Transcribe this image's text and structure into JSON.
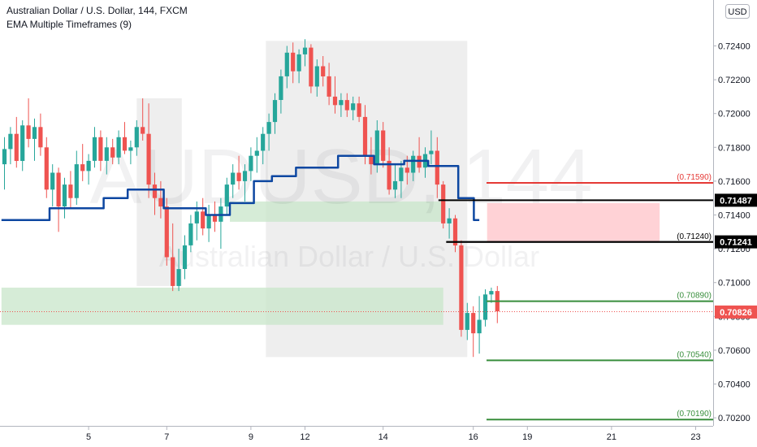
{
  "header": {
    "title": "Australian Dollar / U.S. Dollar, 144, FXCM",
    "indicator": "EMA Multiple Timeframes (9)"
  },
  "watermark": {
    "symbol": "AUDUSD, 144",
    "name": "Australian Dollar / U.S. Dollar"
  },
  "currency_button": "USD",
  "colors": {
    "up": "#26a69a",
    "down": "#ef5350",
    "ema": "#0d47a1",
    "resistance": "#e53935",
    "support": "#388e3c",
    "black_level": "#000000",
    "price_tag": "#ef5350",
    "zone_green": "#c8e6c9",
    "zone_red": "#ffcdd2",
    "zone_gray": "#e0e0e0"
  },
  "chart_data": {
    "type": "candlestick",
    "price_axis": {
      "range": [
        0.7011,
        0.7251
      ],
      "ticks": [
        "0.72400",
        "0.72200",
        "0.72000",
        "0.71800",
        "0.71600",
        "0.71400",
        "0.71200",
        "0.71000",
        "0.70800",
        "0.70600",
        "0.70400",
        "0.70200"
      ]
    },
    "time_axis": {
      "ticks": [
        {
          "label": "5",
          "bar": 14
        },
        {
          "label": "7",
          "bar": 27
        },
        {
          "label": "9",
          "bar": 41
        },
        {
          "label": "12",
          "bar": 50
        },
        {
          "label": "14",
          "bar": 63
        },
        {
          "label": "16",
          "bar": 78
        },
        {
          "label": "19",
          "bar": 87
        },
        {
          "label": "21",
          "bar": 101
        },
        {
          "label": "23",
          "bar": 115
        }
      ],
      "total_slots": 119
    },
    "candles": [
      [
        0.717,
        0.7186,
        0.7155,
        0.7179
      ],
      [
        0.7179,
        0.7192,
        0.717,
        0.7188
      ],
      [
        0.7188,
        0.7198,
        0.7168,
        0.7172
      ],
      [
        0.7172,
        0.7196,
        0.7166,
        0.7193
      ],
      [
        0.7193,
        0.7209,
        0.718,
        0.7185
      ],
      [
        0.7185,
        0.7197,
        0.7172,
        0.7192
      ],
      [
        0.7192,
        0.72,
        0.7175,
        0.718
      ],
      [
        0.718,
        0.7186,
        0.715,
        0.7155
      ],
      [
        0.7155,
        0.717,
        0.7145,
        0.7165
      ],
      [
        0.7165,
        0.7168,
        0.713,
        0.7145
      ],
      [
        0.7145,
        0.7162,
        0.7138,
        0.7158
      ],
      [
        0.7158,
        0.7166,
        0.7144,
        0.715
      ],
      [
        0.715,
        0.7178,
        0.7146,
        0.717
      ],
      [
        0.717,
        0.7182,
        0.716,
        0.7166
      ],
      [
        0.7166,
        0.7176,
        0.7158,
        0.7172
      ],
      [
        0.7172,
        0.7192,
        0.7168,
        0.7186
      ],
      [
        0.7186,
        0.719,
        0.7166,
        0.7172
      ],
      [
        0.7172,
        0.7186,
        0.7164,
        0.718
      ],
      [
        0.718,
        0.7185,
        0.717,
        0.7174
      ],
      [
        0.7174,
        0.719,
        0.717,
        0.7186
      ],
      [
        0.7186,
        0.7195,
        0.7176,
        0.7178
      ],
      [
        0.7178,
        0.7184,
        0.717,
        0.718
      ],
      [
        0.718,
        0.7196,
        0.7175,
        0.7192
      ],
      [
        0.7192,
        0.7209,
        0.7184,
        0.7188
      ],
      [
        0.7188,
        0.7206,
        0.715,
        0.7158
      ],
      [
        0.7158,
        0.7165,
        0.714,
        0.715
      ],
      [
        0.715,
        0.716,
        0.7138,
        0.7145
      ],
      [
        0.7145,
        0.715,
        0.711,
        0.7115
      ],
      [
        0.7115,
        0.7135,
        0.7095,
        0.7098
      ],
      [
        0.7098,
        0.712,
        0.7095,
        0.7108
      ],
      [
        0.7108,
        0.7128,
        0.7102,
        0.7122
      ],
      [
        0.7122,
        0.714,
        0.7118,
        0.7135
      ],
      [
        0.7135,
        0.7148,
        0.7125,
        0.7142
      ],
      [
        0.7142,
        0.715,
        0.7128,
        0.7132
      ],
      [
        0.7132,
        0.7146,
        0.7124,
        0.714
      ],
      [
        0.714,
        0.7148,
        0.713,
        0.7136
      ],
      [
        0.7136,
        0.715,
        0.712,
        0.7145
      ],
      [
        0.7145,
        0.7162,
        0.714,
        0.7158
      ],
      [
        0.7158,
        0.717,
        0.715,
        0.7165
      ],
      [
        0.7165,
        0.7175,
        0.7155,
        0.716
      ],
      [
        0.716,
        0.717,
        0.7148,
        0.7166
      ],
      [
        0.7166,
        0.718,
        0.716,
        0.7175
      ],
      [
        0.7175,
        0.7186,
        0.7165,
        0.7178
      ],
      [
        0.7178,
        0.7192,
        0.717,
        0.7188
      ],
      [
        0.7188,
        0.72,
        0.7178,
        0.7195
      ],
      [
        0.7195,
        0.7212,
        0.7188,
        0.7208
      ],
      [
        0.7208,
        0.7226,
        0.72,
        0.7222
      ],
      [
        0.7222,
        0.724,
        0.7215,
        0.7236
      ],
      [
        0.7236,
        0.7242,
        0.7218,
        0.7225
      ],
      [
        0.7225,
        0.7238,
        0.7218,
        0.7235
      ],
      [
        0.7235,
        0.7244,
        0.7228,
        0.7239
      ],
      [
        0.7239,
        0.7241,
        0.7212,
        0.7216
      ],
      [
        0.7216,
        0.7232,
        0.721,
        0.7228
      ],
      [
        0.7228,
        0.7234,
        0.7216,
        0.7222
      ],
      [
        0.7222,
        0.723,
        0.7205,
        0.721
      ],
      [
        0.721,
        0.7222,
        0.72,
        0.7205
      ],
      [
        0.7205,
        0.7212,
        0.7198,
        0.7208
      ],
      [
        0.7208,
        0.7212,
        0.7198,
        0.7202
      ],
      [
        0.7202,
        0.721,
        0.7196,
        0.7206
      ],
      [
        0.7206,
        0.721,
        0.7195,
        0.7198
      ],
      [
        0.7198,
        0.7205,
        0.717,
        0.7175
      ],
      [
        0.7175,
        0.7186,
        0.7164,
        0.717
      ],
      [
        0.717,
        0.7196,
        0.7165,
        0.719
      ],
      [
        0.719,
        0.7195,
        0.7168,
        0.7172
      ],
      [
        0.7172,
        0.718,
        0.7152,
        0.7155
      ],
      [
        0.7155,
        0.717,
        0.715,
        0.716
      ],
      [
        0.716,
        0.7172,
        0.715,
        0.7168
      ],
      [
        0.7168,
        0.7175,
        0.7158,
        0.7165
      ],
      [
        0.7165,
        0.7178,
        0.716,
        0.7175
      ],
      [
        0.7175,
        0.7186,
        0.7165,
        0.7168
      ],
      [
        0.7168,
        0.718,
        0.7162,
        0.7176
      ],
      [
        0.7176,
        0.719,
        0.717,
        0.7178
      ],
      [
        0.7178,
        0.7186,
        0.715,
        0.7158
      ],
      [
        0.7158,
        0.716,
        0.7132,
        0.7135
      ],
      [
        0.7135,
        0.7144,
        0.7126,
        0.7138
      ],
      [
        0.7138,
        0.714,
        0.7118,
        0.7122
      ],
      [
        0.7122,
        0.7125,
        0.7068,
        0.7072
      ],
      [
        0.7072,
        0.7088,
        0.7066,
        0.7082
      ],
      [
        0.7082,
        0.7086,
        0.7056,
        0.707
      ],
      [
        0.707,
        0.7092,
        0.7058,
        0.7078
      ],
      [
        0.7078,
        0.7096,
        0.7074,
        0.7093
      ],
      [
        0.7093,
        0.7097,
        0.7088,
        0.7095
      ],
      [
        0.7095,
        0.7098,
        0.7076,
        0.7083
      ]
    ],
    "ema_steps": [
      {
        "from": 0,
        "to": 8,
        "value": 0.7137
      },
      {
        "from": 8,
        "to": 17,
        "value": 0.7144
      },
      {
        "from": 17,
        "to": 21,
        "value": 0.715
      },
      {
        "from": 21,
        "to": 27,
        "value": 0.7155
      },
      {
        "from": 27,
        "to": 34,
        "value": 0.7144
      },
      {
        "from": 34,
        "to": 38,
        "value": 0.714
      },
      {
        "from": 38,
        "to": 42,
        "value": 0.7147
      },
      {
        "from": 42,
        "to": 45,
        "value": 0.716
      },
      {
        "from": 45,
        "to": 49,
        "value": 0.7163
      },
      {
        "from": 49,
        "to": 56,
        "value": 0.7168
      },
      {
        "from": 56,
        "to": 62,
        "value": 0.7175
      },
      {
        "from": 62,
        "to": 67,
        "value": 0.717
      },
      {
        "from": 67,
        "to": 71,
        "value": 0.7172
      },
      {
        "from": 71,
        "to": 76,
        "value": 0.7169
      },
      {
        "from": 76,
        "to": 78.6,
        "value": 0.715
      },
      {
        "from": 78.6,
        "to": 79.5,
        "value": 0.7137
      }
    ],
    "zones": [
      {
        "kind": "gray",
        "from_bar": 22.5,
        "to_bar": 29,
        "top": 0.7209,
        "bottom": 0.7098
      },
      {
        "kind": "gray",
        "from_bar": 44,
        "to_bar": 76.5,
        "top": 0.7243,
        "bottom": 0.7056
      },
      {
        "kind": "green",
        "from_bar": 38,
        "to_bar": 72.5,
        "top": 0.7148,
        "bottom": 0.7136
      },
      {
        "kind": "green",
        "from_bar": 0,
        "to_bar": 72.5,
        "top": 0.7097,
        "bottom": 0.7075
      },
      {
        "kind": "red",
        "from_bar": 80.8,
        "to_bar": 108.5,
        "top": 0.7147,
        "bottom": 0.7124
      }
    ],
    "levels": [
      {
        "price": 0.7159,
        "label": "(0.71590)",
        "color": "resistance",
        "from_bar": 80.2
      },
      {
        "price": 0.7089,
        "label": "(0.70890)",
        "color": "support",
        "from_bar": 80.2
      },
      {
        "price": 0.7054,
        "label": "(0.70540)",
        "color": "support",
        "from_bar": 80.2
      },
      {
        "price": 0.7019,
        "label": "(0.70190)",
        "color": "support",
        "from_bar": 80.2
      },
      {
        "price": 0.7124,
        "label": "(0.71240)",
        "color": "black_level",
        "from_bar": 73.5
      }
    ],
    "hline_tags": [
      {
        "price": 0.71487,
        "label": "0.71487",
        "from_bar": 72.2
      },
      {
        "price": 0.71241,
        "label": "0.71241",
        "from_bar": 73.5
      }
    ],
    "last_price": {
      "price": 0.70826,
      "label": "0.70826"
    }
  }
}
